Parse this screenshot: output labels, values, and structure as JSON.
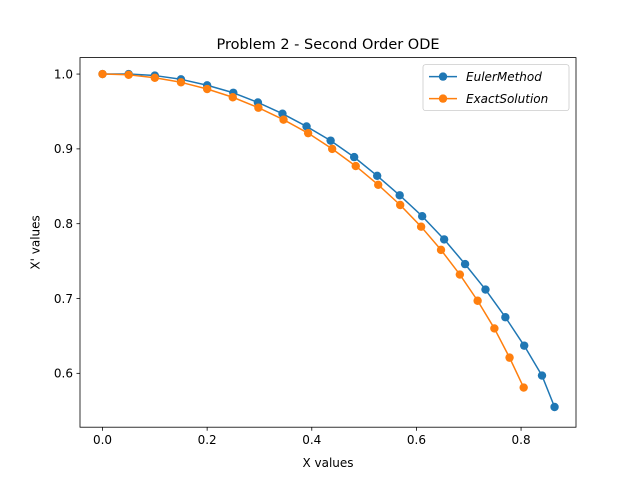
{
  "chart_data": {
    "type": "line",
    "title": "Problem 2 - Second Order ODE",
    "xlabel": "X values",
    "ylabel": "X' values",
    "xlim": [
      -0.043,
      0.905
    ],
    "ylim": [
      0.528,
      1.022
    ],
    "xticks": [
      0.0,
      0.2,
      0.4,
      0.6,
      0.8
    ],
    "xtick_labels": [
      "0.0",
      "0.2",
      "0.4",
      "0.6",
      "0.8"
    ],
    "yticks": [
      0.6,
      0.7,
      0.8,
      0.9,
      1.0
    ],
    "ytick_labels": [
      "0.6",
      "0.7",
      "0.8",
      "0.9",
      "1.0"
    ],
    "grid": false,
    "legend_position": "top-right",
    "series": [
      {
        "name": "EulerMethod",
        "color": "#1f77b4",
        "x": [
          0.0,
          0.05,
          0.1,
          0.15,
          0.2,
          0.25,
          0.297,
          0.344,
          0.39,
          0.436,
          0.481,
          0.525,
          0.568,
          0.611,
          0.653,
          0.693,
          0.732,
          0.77,
          0.806,
          0.84,
          0.864
        ],
        "y": [
          1.0,
          1.0,
          0.998,
          0.993,
          0.985,
          0.975,
          0.962,
          0.947,
          0.93,
          0.911,
          0.889,
          0.864,
          0.838,
          0.81,
          0.779,
          0.746,
          0.712,
          0.675,
          0.637,
          0.597,
          0.555
        ]
      },
      {
        "name": "ExactSolution",
        "color": "#ff7f0e",
        "x": [
          0.0,
          0.05,
          0.1,
          0.15,
          0.2,
          0.249,
          0.298,
          0.346,
          0.393,
          0.439,
          0.484,
          0.527,
          0.569,
          0.609,
          0.647,
          0.683,
          0.717,
          0.749,
          0.778,
          0.805
        ],
        "y": [
          1.0,
          0.999,
          0.995,
          0.989,
          0.98,
          0.969,
          0.955,
          0.939,
          0.921,
          0.9,
          0.877,
          0.852,
          0.825,
          0.796,
          0.765,
          0.732,
          0.697,
          0.66,
          0.621,
          0.581
        ]
      }
    ]
  }
}
